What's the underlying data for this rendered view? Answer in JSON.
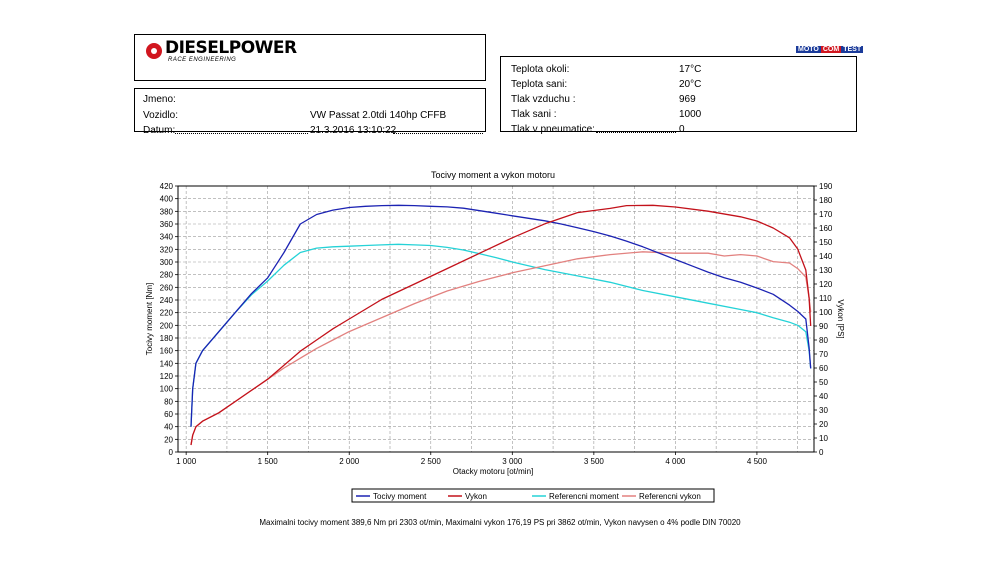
{
  "header": {
    "brand": "DIESELPOWER",
    "brand_sub": "RACE ENGINEERING",
    "badge": [
      "MOTO",
      "COM",
      "TEST"
    ]
  },
  "vehicle": {
    "jmeno_label": "Jmeno:",
    "jmeno_value": "",
    "vozidlo_label": "Vozidlo:",
    "vozidlo_value": "VW Passat 2.0tdi 140hp CFFB",
    "datum_label": "Datum:",
    "datum_value": "21.3.2016 13:10:22"
  },
  "conditions": {
    "rows": [
      {
        "label": "Teplota okoli:",
        "value": "17°C"
      },
      {
        "label": "Teplota sani:",
        "value": "20°C"
      },
      {
        "label": "Tlak vzduchu :",
        "value": "969"
      },
      {
        "label": "Tlak sani :",
        "value": "1000"
      },
      {
        "label": "Tlak v pneumatice:",
        "value": "0"
      }
    ]
  },
  "footer": "Maximalni tocivy moment 389,6 Nm pri 2303 ot/min,  Maximalni vykon 176,19 PS pri 3862 ot/min,  Vykon navysen o 4% podle DIN 70020",
  "chart_data": {
    "type": "line",
    "title": "Tocivy moment a vykon motoru",
    "xlabel": "Otacky motoru [ot/min]",
    "ylabel": "Tocivy moment [Nm]",
    "y2label": "Vykon [PS]",
    "xlim": [
      950,
      4850
    ],
    "ylim": [
      0,
      420
    ],
    "y2lim": [
      0,
      190
    ],
    "xticks": [
      1000,
      1500,
      2000,
      2500,
      3000,
      3500,
      4000,
      4500
    ],
    "xtick_labels": [
      "1 000",
      "1 500",
      "2 000",
      "2 500",
      "3 000",
      "3 500",
      "4 000",
      "4 500"
    ],
    "yticks": [
      0,
      20,
      40,
      60,
      80,
      100,
      120,
      140,
      160,
      180,
      200,
      220,
      240,
      260,
      280,
      300,
      320,
      340,
      360,
      380,
      400,
      420
    ],
    "y2ticks": [
      0,
      10,
      20,
      30,
      40,
      50,
      60,
      70,
      80,
      90,
      100,
      110,
      120,
      130,
      140,
      150,
      160,
      170,
      180,
      190
    ],
    "grid": true,
    "legend_position": "bottom",
    "series": [
      {
        "name": "Tocivy moment",
        "color": "#1c23b3",
        "axis": "left",
        "x": [
          1030,
          1040,
          1060,
          1100,
          1200,
          1300,
          1400,
          1500,
          1600,
          1700,
          1800,
          1900,
          2000,
          2100,
          2200,
          2303,
          2400,
          2500,
          2600,
          2700,
          2800,
          2900,
          3000,
          3100,
          3200,
          3300,
          3400,
          3500,
          3600,
          3700,
          3800,
          3900,
          4000,
          4100,
          4200,
          4300,
          4400,
          4500,
          4600,
          4700,
          4750,
          4800,
          4820,
          4830
        ],
        "y": [
          40,
          100,
          140,
          160,
          190,
          220,
          250,
          275,
          315,
          360,
          375,
          382,
          386,
          388,
          389,
          389.6,
          389,
          388,
          387,
          385,
          381,
          377,
          373,
          369,
          365,
          360,
          354,
          348,
          341,
          333,
          324,
          314,
          304,
          294,
          284,
          275,
          268,
          259,
          249,
          232,
          222,
          210,
          165,
          132
        ]
      },
      {
        "name": "Vykon",
        "color": "#c3121b",
        "axis": "right",
        "x": [
          1030,
          1040,
          1060,
          1100,
          1200,
          1300,
          1400,
          1500,
          1600,
          1700,
          1800,
          1900,
          2000,
          2200,
          2400,
          2600,
          2800,
          3000,
          3200,
          3400,
          3600,
          3700,
          3862,
          4000,
          4200,
          4400,
          4500,
          4600,
          4700,
          4750,
          4800,
          4820,
          4830
        ],
        "y": [
          5,
          12,
          18,
          22,
          28,
          36,
          44,
          52,
          62,
          72,
          80,
          88,
          95,
          109,
          120,
          131,
          142,
          153,
          163,
          171,
          174,
          176,
          176.19,
          175,
          172,
          168,
          165,
          160,
          153,
          145,
          130,
          110,
          90
        ]
      },
      {
        "name": "Referencni moment",
        "color": "#25d2d7",
        "axis": "left",
        "x": [
          1030,
          1040,
          1060,
          1100,
          1200,
          1300,
          1400,
          1500,
          1600,
          1700,
          1800,
          1900,
          2000,
          2100,
          2200,
          2300,
          2400,
          2500,
          2600,
          2700,
          2800,
          2900,
          3000,
          3200,
          3400,
          3600,
          3800,
          4000,
          4200,
          4400,
          4500,
          4600,
          4700,
          4750,
          4800,
          4820,
          4830
        ],
        "y": [
          40,
          100,
          140,
          160,
          190,
          220,
          248,
          270,
          295,
          315,
          322,
          324,
          325,
          326,
          327,
          328,
          327,
          326,
          323,
          319,
          313,
          307,
          300,
          288,
          278,
          268,
          255,
          245,
          235,
          225,
          220,
          212,
          205,
          200,
          190,
          160,
          132
        ]
      },
      {
        "name": "Referencni vykon",
        "color": "#e2817f",
        "axis": "right",
        "x": [
          1030,
          1040,
          1060,
          1100,
          1200,
          1300,
          1400,
          1500,
          1600,
          1700,
          1800,
          1900,
          2000,
          2200,
          2400,
          2600,
          2800,
          3000,
          3200,
          3400,
          3600,
          3800,
          4000,
          4200,
          4300,
          4400,
          4500,
          4600,
          4700,
          4750,
          4800,
          4820,
          4830
        ],
        "y": [
          5,
          12,
          18,
          22,
          28,
          36,
          44,
          52,
          60,
          67,
          74,
          80,
          86,
          96,
          106,
          115,
          122,
          128,
          133,
          138,
          141,
          143,
          142,
          142,
          140,
          141,
          140,
          136,
          135,
          131,
          125,
          110,
          100
        ]
      }
    ]
  }
}
